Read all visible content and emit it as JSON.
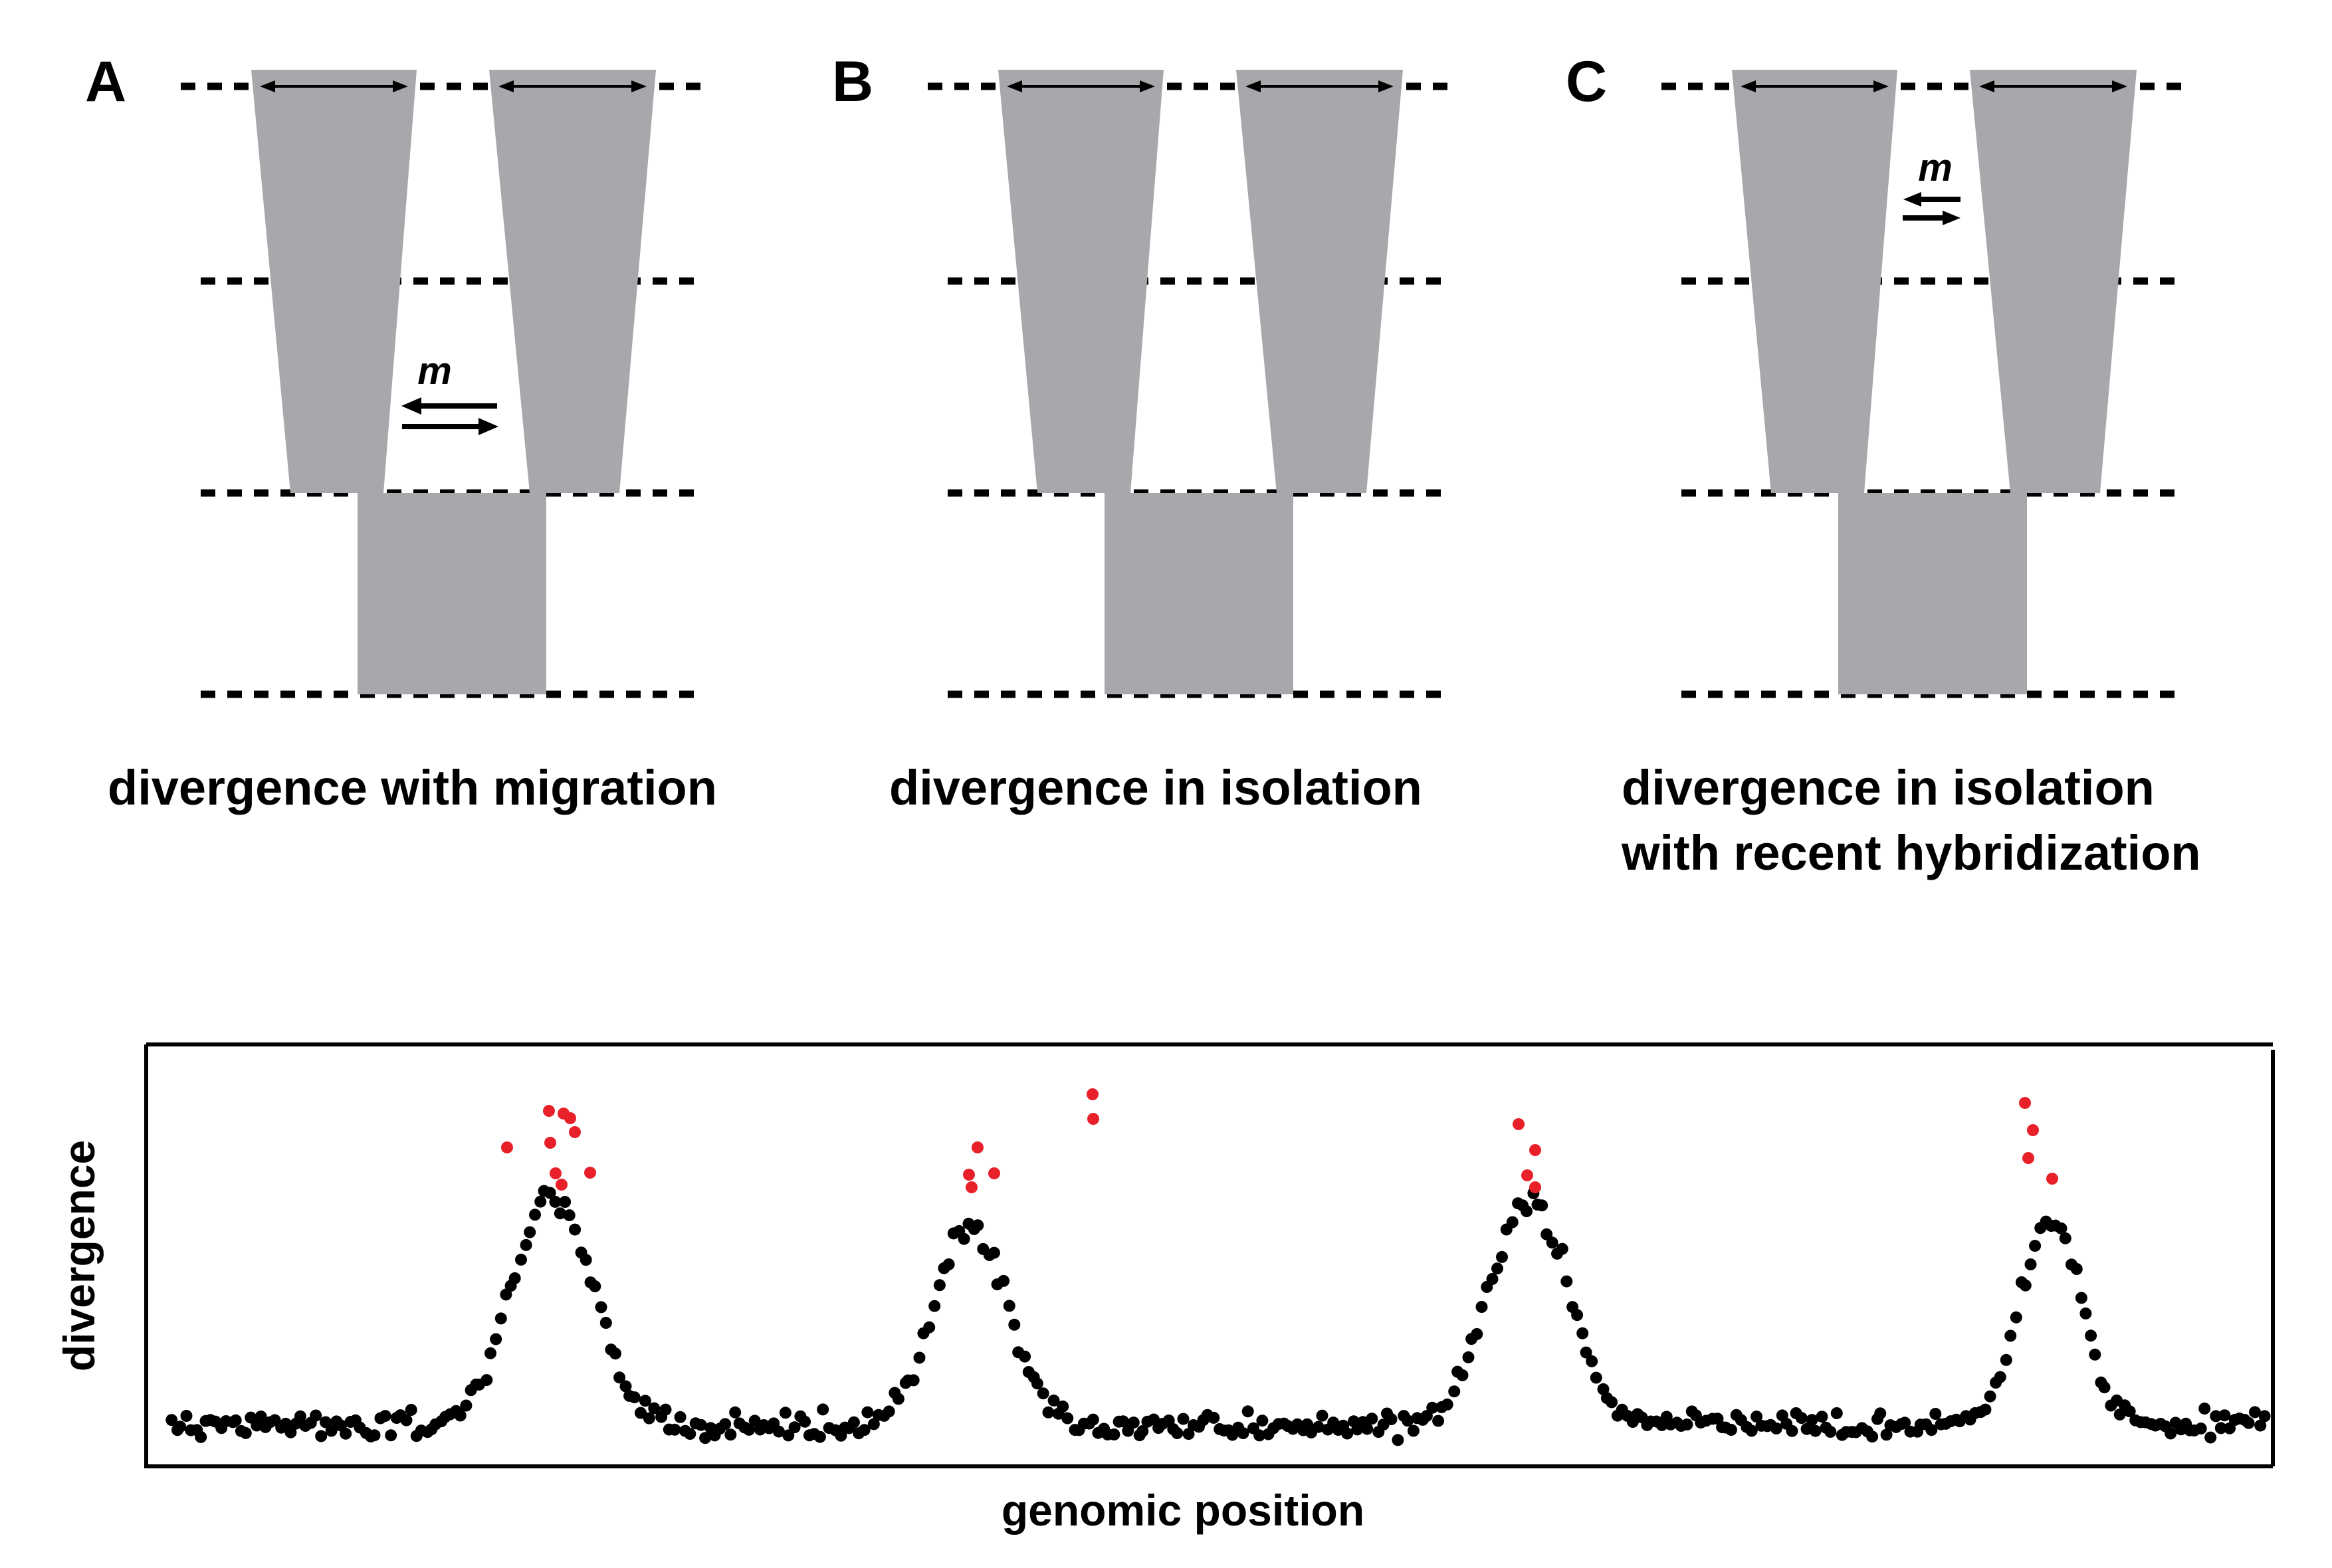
{
  "panels": [
    {
      "letter": "A",
      "caption_lines": [
        "divergence with migration"
      ],
      "migration_label": "m",
      "migration": "after-split"
    },
    {
      "letter": "B",
      "caption_lines": [
        "divergence in isolation"
      ],
      "migration_label": "",
      "migration": "none"
    },
    {
      "letter": "C",
      "caption_lines": [
        "divergence in isolation",
        "with recent hybridization"
      ],
      "migration_label": "m",
      "migration": "recent"
    }
  ],
  "plot": {
    "xlabel": "genomic position",
    "ylabel": "divergence",
    "colors": {
      "background_points": "#000000",
      "outlier_points": "#e8202a"
    }
  },
  "colors": {
    "population": "#a7a8ab",
    "lines": "#000000"
  }
}
